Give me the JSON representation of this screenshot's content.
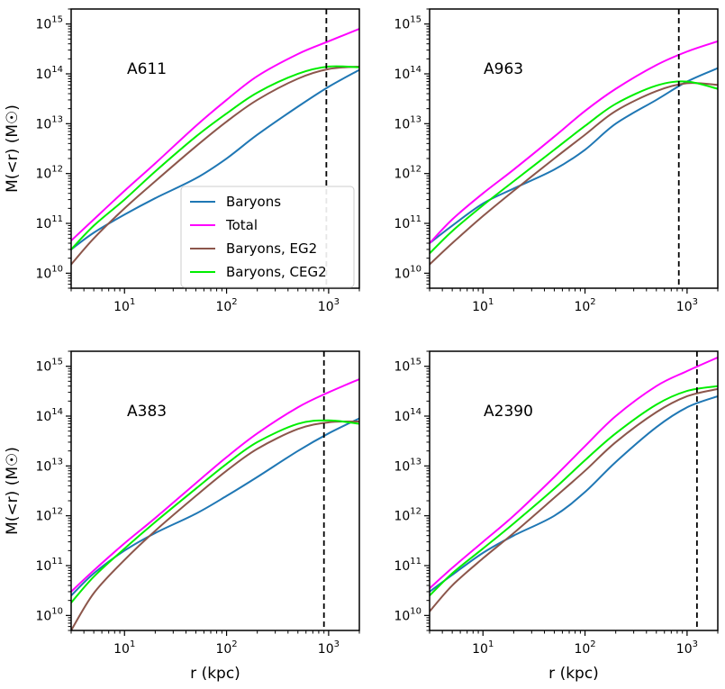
{
  "chart_data": {
    "type": "line",
    "shared_ylabel": "M(<r) (M☉)",
    "shared_xlabel": "r (kpc)",
    "xscale": "log",
    "yscale": "log",
    "xlim": [
      3,
      2000
    ],
    "ylim": [
      5000000000.0,
      2000000000000000.0
    ],
    "x_ticks": [
      10,
      100,
      1000
    ],
    "x_tick_labels": [
      {
        "base": "10",
        "exp": "1"
      },
      {
        "base": "10",
        "exp": "2"
      },
      {
        "base": "10",
        "exp": "3"
      }
    ],
    "y_ticks": [
      10000000000.0,
      100000000000.0,
      1000000000000.0,
      10000000000000.0,
      100000000000000.0,
      1000000000000000.0
    ],
    "y_tick_labels": [
      {
        "base": "10",
        "exp": "10"
      },
      {
        "base": "10",
        "exp": "11"
      },
      {
        "base": "10",
        "exp": "12"
      },
      {
        "base": "10",
        "exp": "13"
      },
      {
        "base": "10",
        "exp": "14"
      },
      {
        "base": "10",
        "exp": "15"
      }
    ],
    "legend": {
      "location": "lower-right of top-left panel",
      "entries": [
        {
          "name": "Baryons",
          "color": "#1f77b4"
        },
        {
          "name": "Total",
          "color": "#ff00ff"
        },
        {
          "name": "Baryons, EG2",
          "color": "#8c564b"
        },
        {
          "name": "Baryons, CEG2",
          "color": "#00ee00"
        }
      ]
    },
    "panels": [
      {
        "title": "A611",
        "vline_x": 950,
        "series": [
          {
            "name": "Baryons",
            "color": "#1f77b4",
            "points": [
              [
                3,
                30000000000.0
              ],
              [
                5,
                65000000000.0
              ],
              [
                10,
                150000000000.0
              ],
              [
                20,
                320000000000.0
              ],
              [
                50,
                800000000000.0
              ],
              [
                100,
                2000000000000.0
              ],
              [
                200,
                6000000000000.0
              ],
              [
                500,
                22000000000000.0
              ],
              [
                1000,
                55000000000000.0
              ],
              [
                2000,
                120000000000000.0
              ]
            ]
          },
          {
            "name": "Total",
            "color": "#ff00ff",
            "points": [
              [
                3,
                45000000000.0
              ],
              [
                5,
                120000000000.0
              ],
              [
                10,
                450000000000.0
              ],
              [
                20,
                1600000000000.0
              ],
              [
                50,
                9000000000000.0
              ],
              [
                100,
                30000000000000.0
              ],
              [
                200,
                90000000000000.0
              ],
              [
                500,
                250000000000000.0
              ],
              [
                1000,
                450000000000000.0
              ],
              [
                2000,
                800000000000000.0
              ]
            ]
          },
          {
            "name": "Baryons, EG2",
            "color": "#8c564b",
            "points": [
              [
                3,
                15000000000.0
              ],
              [
                5,
                50000000000.0
              ],
              [
                10,
                200000000000.0
              ],
              [
                20,
                700000000000.0
              ],
              [
                50,
                3500000000000.0
              ],
              [
                100,
                11000000000000.0
              ],
              [
                200,
                30000000000000.0
              ],
              [
                500,
                80000000000000.0
              ],
              [
                1000,
                125000000000000.0
              ],
              [
                2000,
                140000000000000.0
              ]
            ]
          },
          {
            "name": "Baryons, CEG2",
            "color": "#00ee00",
            "points": [
              [
                3,
                30000000000.0
              ],
              [
                5,
                90000000000.0
              ],
              [
                10,
                300000000000.0
              ],
              [
                20,
                1100000000000.0
              ],
              [
                50,
                5500000000000.0
              ],
              [
                100,
                16000000000000.0
              ],
              [
                200,
                42000000000000.0
              ],
              [
                500,
                100000000000000.0
              ],
              [
                1000,
                140000000000000.0
              ],
              [
                2000,
                135000000000000.0
              ]
            ]
          }
        ]
      },
      {
        "title": "A963",
        "vline_x": 830,
        "series": [
          {
            "name": "Baryons",
            "color": "#1f77b4",
            "points": [
              [
                3,
                40000000000.0
              ],
              [
                5,
                90000000000.0
              ],
              [
                10,
                250000000000.0
              ],
              [
                20,
                500000000000.0
              ],
              [
                50,
                1200000000000.0
              ],
              [
                100,
                3000000000000.0
              ],
              [
                200,
                10000000000000.0
              ],
              [
                500,
                30000000000000.0
              ],
              [
                1000,
                70000000000000.0
              ],
              [
                2000,
                130000000000000.0
              ]
            ]
          },
          {
            "name": "Total",
            "color": "#ff00ff",
            "points": [
              [
                3,
                40000000000.0
              ],
              [
                5,
                120000000000.0
              ],
              [
                10,
                400000000000.0
              ],
              [
                20,
                1200000000000.0
              ],
              [
                50,
                5500000000000.0
              ],
              [
                100,
                18000000000000.0
              ],
              [
                200,
                50000000000000.0
              ],
              [
                500,
                150000000000000.0
              ],
              [
                1000,
                280000000000000.0
              ],
              [
                2000,
                450000000000000.0
              ]
            ]
          },
          {
            "name": "Baryons, EG2",
            "color": "#8c564b",
            "points": [
              [
                3,
                15000000000.0
              ],
              [
                5,
                40000000000.0
              ],
              [
                10,
                140000000000.0
              ],
              [
                20,
                450000000000.0
              ],
              [
                50,
                2000000000000.0
              ],
              [
                100,
                6000000000000.0
              ],
              [
                200,
                18000000000000.0
              ],
              [
                500,
                45000000000000.0
              ],
              [
                1000,
                65000000000000.0
              ],
              [
                2000,
                60000000000000.0
              ]
            ]
          },
          {
            "name": "Baryons, CEG2",
            "color": "#00ee00",
            "points": [
              [
                3,
                25000000000.0
              ],
              [
                5,
                70000000000.0
              ],
              [
                10,
                230000000000.0
              ],
              [
                20,
                700000000000.0
              ],
              [
                50,
                3000000000000.0
              ],
              [
                100,
                9000000000000.0
              ],
              [
                200,
                25000000000000.0
              ],
              [
                500,
                58000000000000.0
              ],
              [
                1000,
                70000000000000.0
              ],
              [
                2000,
                50000000000000.0
              ]
            ]
          }
        ]
      },
      {
        "title": "A383",
        "vline_x": 900,
        "series": [
          {
            "name": "Baryons",
            "color": "#1f77b4",
            "points": [
              [
                3,
                25000000000.0
              ],
              [
                5,
                70000000000.0
              ],
              [
                10,
                200000000000.0
              ],
              [
                20,
                450000000000.0
              ],
              [
                50,
                1100000000000.0
              ],
              [
                100,
                2500000000000.0
              ],
              [
                200,
                6000000000000.0
              ],
              [
                500,
                20000000000000.0
              ],
              [
                1000,
                45000000000000.0
              ],
              [
                2000,
                90000000000000.0
              ]
            ]
          },
          {
            "name": "Total",
            "color": "#ff00ff",
            "points": [
              [
                3,
                30000000000.0
              ],
              [
                5,
                80000000000.0
              ],
              [
                10,
                280000000000.0
              ],
              [
                20,
                900000000000.0
              ],
              [
                50,
                4500000000000.0
              ],
              [
                100,
                15000000000000.0
              ],
              [
                200,
                45000000000000.0
              ],
              [
                500,
                150000000000000.0
              ],
              [
                1000,
                300000000000000.0
              ],
              [
                2000,
                550000000000000.0
              ]
            ]
          },
          {
            "name": "Baryons, EG2",
            "color": "#8c564b",
            "points": [
              [
                3,
                5000000000.0
              ],
              [
                5,
                28000000000.0
              ],
              [
                10,
                130000000000.0
              ],
              [
                20,
                500000000000.0
              ],
              [
                50,
                2500000000000.0
              ],
              [
                100,
                8000000000000.0
              ],
              [
                200,
                22000000000000.0
              ],
              [
                500,
                55000000000000.0
              ],
              [
                1000,
                75000000000000.0
              ],
              [
                2000,
                78000000000000.0
              ]
            ]
          },
          {
            "name": "Baryons, CEG2",
            "color": "#00ee00",
            "points": [
              [
                3,
                18000000000.0
              ],
              [
                5,
                60000000000.0
              ],
              [
                10,
                220000000000.0
              ],
              [
                20,
                750000000000.0
              ],
              [
                50,
                3500000000000.0
              ],
              [
                100,
                11000000000000.0
              ],
              [
                200,
                30000000000000.0
              ],
              [
                500,
                70000000000000.0
              ],
              [
                1000,
                82000000000000.0
              ],
              [
                2000,
                70000000000000.0
              ]
            ]
          }
        ]
      },
      {
        "title": "A2390",
        "vline_x": 1250,
        "series": [
          {
            "name": "Baryons",
            "color": "#1f77b4",
            "points": [
              [
                3,
                30000000000.0
              ],
              [
                5,
                65000000000.0
              ],
              [
                10,
                180000000000.0
              ],
              [
                20,
                400000000000.0
              ],
              [
                50,
                1000000000000.0
              ],
              [
                100,
                3000000000000.0
              ],
              [
                200,
                12000000000000.0
              ],
              [
                500,
                60000000000000.0
              ],
              [
                1000,
                150000000000000.0
              ],
              [
                2000,
                250000000000000.0
              ]
            ]
          },
          {
            "name": "Total",
            "color": "#ff00ff",
            "points": [
              [
                3,
                35000000000.0
              ],
              [
                5,
                90000000000.0
              ],
              [
                10,
                300000000000.0
              ],
              [
                20,
                1000000000000.0
              ],
              [
                50,
                6000000000000.0
              ],
              [
                100,
                25000000000000.0
              ],
              [
                200,
                100000000000000.0
              ],
              [
                500,
                400000000000000.0
              ],
              [
                1000,
                800000000000000.0
              ],
              [
                2000,
                1500000000000000.0
              ]
            ]
          },
          {
            "name": "Baryons, EG2",
            "color": "#8c564b",
            "points": [
              [
                3,
                12000000000.0
              ],
              [
                5,
                40000000000.0
              ],
              [
                10,
                140000000000.0
              ],
              [
                20,
                450000000000.0
              ],
              [
                50,
                2300000000000.0
              ],
              [
                100,
                8000000000000.0
              ],
              [
                200,
                30000000000000.0
              ],
              [
                500,
                120000000000000.0
              ],
              [
                1000,
                250000000000000.0
              ],
              [
                2000,
                350000000000000.0
              ]
            ]
          },
          {
            "name": "Baryons, CEG2",
            "color": "#00ee00",
            "points": [
              [
                3,
                25000000000.0
              ],
              [
                5,
                70000000000.0
              ],
              [
                10,
                220000000000.0
              ],
              [
                20,
                700000000000.0
              ],
              [
                50,
                3500000000000.0
              ],
              [
                100,
                13000000000000.0
              ],
              [
                200,
                45000000000000.0
              ],
              [
                500,
                170000000000000.0
              ],
              [
                1000,
                320000000000000.0
              ],
              [
                2000,
                400000000000000.0
              ]
            ]
          }
        ]
      }
    ]
  }
}
